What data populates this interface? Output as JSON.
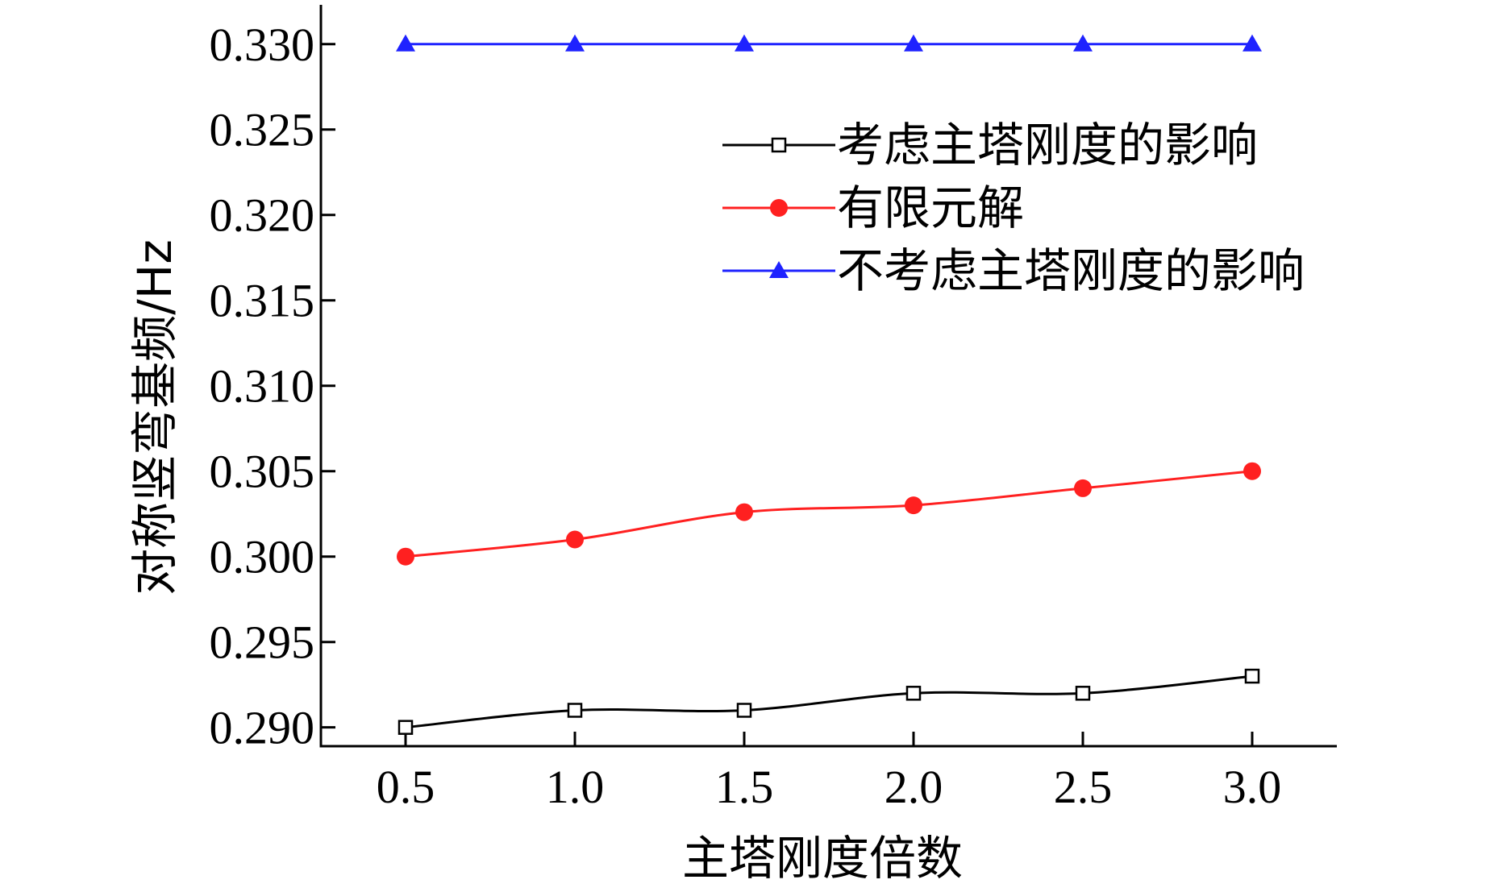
{
  "chart_data": {
    "type": "line",
    "xlabel": "主塔刚度倍数",
    "ylabel": "对称竖弯基频/Hz",
    "x": [
      0.5,
      1.0,
      1.5,
      2.0,
      2.5,
      3.0
    ],
    "x_tick_labels": [
      "0.5",
      "1.0",
      "1.5",
      "2.0",
      "2.5",
      "3.0"
    ],
    "y_ticks": [
      0.29,
      0.295,
      0.3,
      0.305,
      0.31,
      0.315,
      0.32,
      0.325,
      0.33
    ],
    "y_tick_labels": [
      "0.290",
      "0.295",
      "0.300",
      "0.305",
      "0.310",
      "0.315",
      "0.320",
      "0.325",
      "0.330"
    ],
    "xlim": [
      0.25,
      3.25
    ],
    "ylim": [
      0.2889,
      0.3323
    ],
    "grid": false,
    "legend_position": "top-right",
    "series": [
      {
        "name": "考虑主塔刚度的影响",
        "values": [
          0.29,
          0.291,
          0.291,
          0.292,
          0.292,
          0.293
        ],
        "color": "#000000",
        "marker": "open-square"
      },
      {
        "name": "有限元解",
        "values": [
          0.3,
          0.301,
          0.3026,
          0.303,
          0.304,
          0.305
        ],
        "color": "#ff2020",
        "marker": "filled-circle"
      },
      {
        "name": "不考虑主塔刚度的影响",
        "values": [
          0.33,
          0.33,
          0.33,
          0.33,
          0.33,
          0.33
        ],
        "color": "#1e22ff",
        "marker": "filled-triangle"
      }
    ]
  }
}
